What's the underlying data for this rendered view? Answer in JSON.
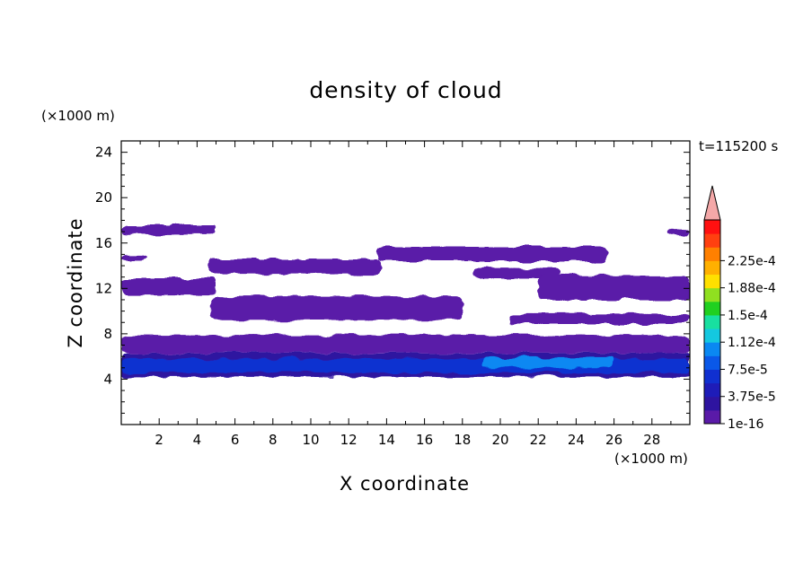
{
  "chart_data": {
    "type": "heatmap",
    "title": "density of cloud",
    "xlabel": "X coordinate",
    "ylabel": "Z coordinate",
    "x_units": "(×1000 m)",
    "y_units": "(×1000 m)",
    "time_label": "t=115200 s",
    "xlim": [
      0,
      30
    ],
    "ylim": [
      0,
      25
    ],
    "x_ticks": [
      2,
      4,
      6,
      8,
      10,
      12,
      14,
      16,
      18,
      20,
      22,
      24,
      26,
      28
    ],
    "y_ticks": [
      4,
      8,
      12,
      16,
      20,
      24
    ],
    "colorbar": {
      "labels": [
        "1e-16",
        "3.75e-5",
        "7.5e-5",
        "1.12e-4",
        "1.5e-4",
        "1.88e-4",
        "2.25e-4"
      ],
      "label_levels": [
        0,
        2,
        4,
        6,
        8,
        10,
        12
      ],
      "colors": [
        "#5a1aa8",
        "#2e14a0",
        "#1e1cb8",
        "#1030d0",
        "#0a58e8",
        "#0a88f2",
        "#14c8e0",
        "#18e0a0",
        "#20d020",
        "#90e020",
        "#ffe000",
        "#ffb000",
        "#ff8000",
        "#ff4010",
        "#ff1010"
      ],
      "extend_color": "#f4a8a8"
    },
    "cloud_layers": [
      {
        "x": [
          0,
          5
        ],
        "z": [
          16.7,
          17.6
        ]
      },
      {
        "x": [
          28.9,
          30
        ],
        "z": [
          16.6,
          17.2
        ]
      },
      {
        "x": [
          0,
          1.3
        ],
        "z": [
          14.4,
          15
        ]
      },
      {
        "x": [
          4.6,
          13.7
        ],
        "z": [
          13.2,
          14.6
        ]
      },
      {
        "x": [
          13.5,
          25.6
        ],
        "z": [
          14.4,
          15.7
        ]
      },
      {
        "x": [
          18.5,
          23.2
        ],
        "z": [
          12.9,
          13.8
        ]
      },
      {
        "x": [
          0,
          5
        ],
        "z": [
          11.5,
          12.9
        ]
      },
      {
        "x": [
          22,
          30
        ],
        "z": [
          11,
          13.1
        ]
      },
      {
        "x": [
          4.8,
          18
        ],
        "z": [
          9.2,
          11.3
        ]
      },
      {
        "x": [
          20.4,
          30
        ],
        "z": [
          8.9,
          9.7
        ]
      },
      {
        "x": [
          0,
          30
        ],
        "z": [
          6.3,
          7.9
        ]
      },
      {
        "x": [
          0,
          30
        ],
        "z": [
          4.2,
          6.3
        ]
      },
      {
        "x": [
          0,
          30
        ],
        "z": [
          4.6,
          5.8
        ]
      },
      {
        "x": [
          19,
          26
        ],
        "z": [
          5,
          5.9
        ]
      }
    ]
  }
}
